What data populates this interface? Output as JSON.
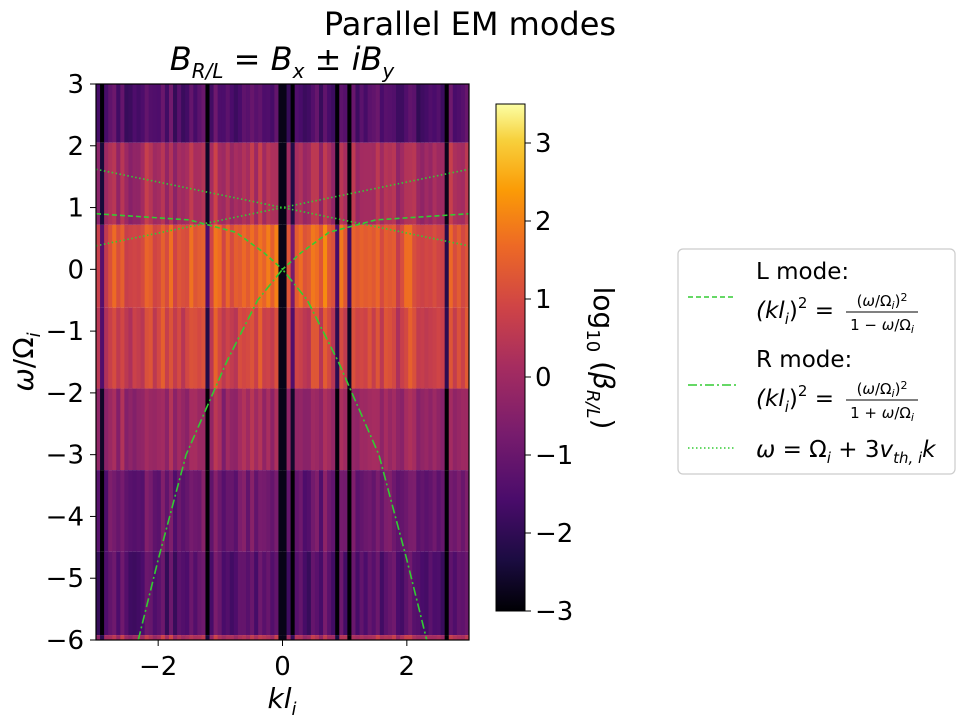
{
  "chart_data": {
    "type": "heatmap",
    "suptitle": "Parallel EM modes",
    "title": "B_R/L = B_x ± iB_y",
    "xlabel": "kl_i",
    "ylabel": "ω/Ω_i",
    "xlim": [
      -3,
      3
    ],
    "ylim": [
      -6,
      3
    ],
    "xticks": [
      -2,
      0,
      2
    ],
    "yticks": [
      3,
      2,
      1,
      0,
      -1,
      -2,
      -3,
      -4,
      -5,
      -6
    ],
    "xtick_labels": [
      "−2",
      "0",
      "2"
    ],
    "ytick_labels": [
      "3",
      "2",
      "1",
      "0",
      "−1",
      "−2",
      "−3",
      "−4",
      "−5",
      "−6"
    ],
    "colormap": "inferno",
    "colorbar": {
      "label": "log10 (β_R/L)",
      "range": [
        -3,
        3.5
      ],
      "ticks": [
        3,
        2,
        1,
        0,
        -1,
        -2,
        -3
      ],
      "tick_labels": [
        "3",
        "2",
        "1",
        "0",
        "−1",
        "−2",
        "−3"
      ]
    },
    "heatmap_bands": [
      {
        "y_range": [
          2.05,
          3.0
        ],
        "base_log10_beta": -1.4
      },
      {
        "y_range": [
          0.72,
          2.05
        ],
        "base_log10_beta": 0.2
      },
      {
        "y_range": [
          -0.62,
          0.72
        ],
        "base_log10_beta": 1.6
      },
      {
        "y_range": [
          -1.93,
          -0.62
        ],
        "base_log10_beta": 0.9
      },
      {
        "y_range": [
          -3.25,
          -1.93
        ],
        "base_log10_beta": -0.1
      },
      {
        "y_range": [
          -4.57,
          -3.25
        ],
        "base_log10_beta": -0.9
      },
      {
        "y_range": [
          -5.92,
          -4.57
        ],
        "base_log10_beta": -1.3
      },
      {
        "y_range": [
          -6.0,
          -5.92
        ],
        "base_log10_beta": 0.3
      }
    ],
    "series": [
      {
        "legend_title": "L mode:",
        "legend_formula": "(kl_i)² = (ω/Ω_i)² / (1 − ω/Ω_i)",
        "style": "dashed",
        "color": "#33cc33",
        "x": [
          -3,
          -1.5,
          -0.75,
          -0.3,
          0,
          0.3,
          0.75,
          1.5,
          3
        ],
        "y": [
          0.9,
          0.8,
          0.6,
          0.27,
          0,
          0.27,
          0.6,
          0.8,
          0.9
        ]
      },
      {
        "legend_title": "R mode:",
        "legend_formula": "(kl_i)² = (ω/Ω_i)² / (1 + ω/Ω_i)",
        "style": "dashdot",
        "color": "#33cc33",
        "x": [
          -2.32,
          -2.0,
          -1.55,
          -0.9,
          -0.4,
          0,
          0.4,
          0.9,
          1.55,
          2.0,
          2.32
        ],
        "y": [
          -6.0,
          -4.7,
          -3.0,
          -1.5,
          -0.5,
          0,
          -0.5,
          -1.5,
          -3.0,
          -4.7,
          -6.0
        ]
      },
      {
        "legend_title": "",
        "legend_formula": "ω = Ω_i + 3v_th,i k",
        "style": "dotted",
        "color": "#33cc33",
        "lines": [
          {
            "x": [
              -3,
              3
            ],
            "y": [
              0.38,
              1.62
            ]
          },
          {
            "x": [
              -3,
              3
            ],
            "y": [
              1.62,
              0.38
            ]
          }
        ]
      }
    ]
  }
}
